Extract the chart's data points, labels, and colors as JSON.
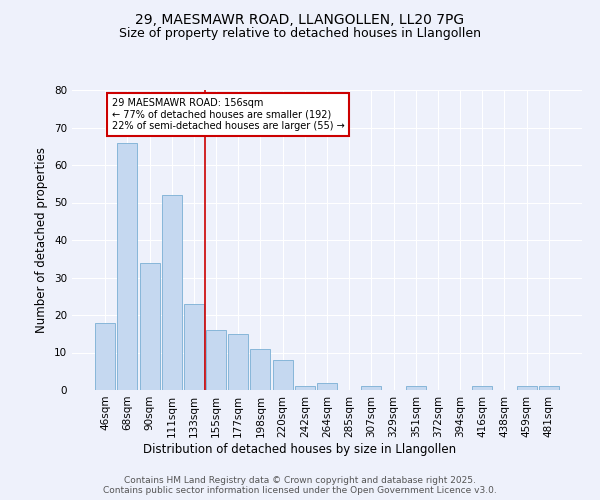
{
  "title1": "29, MAESMAWR ROAD, LLANGOLLEN, LL20 7PG",
  "title2": "Size of property relative to detached houses in Llangollen",
  "xlabel": "Distribution of detached houses by size in Llangollen",
  "ylabel": "Number of detached properties",
  "categories": [
    "46sqm",
    "68sqm",
    "90sqm",
    "111sqm",
    "133sqm",
    "155sqm",
    "177sqm",
    "198sqm",
    "220sqm",
    "242sqm",
    "264sqm",
    "285sqm",
    "307sqm",
    "329sqm",
    "351sqm",
    "372sqm",
    "394sqm",
    "416sqm",
    "438sqm",
    "459sqm",
    "481sqm"
  ],
  "values": [
    18,
    66,
    34,
    52,
    23,
    16,
    15,
    11,
    8,
    1,
    2,
    0,
    1,
    0,
    1,
    0,
    0,
    1,
    0,
    1,
    1
  ],
  "bar_color": "#c5d8f0",
  "bar_edge_color": "#7aafd4",
  "vline_x": 4.5,
  "vline_color": "#cc0000",
  "annotation_box_edge": "#cc0000",
  "annotation_text_line1": "29 MAESMAWR ROAD: 156sqm",
  "annotation_text_line2": "← 77% of detached houses are smaller (192)",
  "annotation_text_line3": "22% of semi-detached houses are larger (55) →",
  "ylim": [
    0,
    80
  ],
  "yticks": [
    0,
    10,
    20,
    30,
    40,
    50,
    60,
    70,
    80
  ],
  "footnote1": "Contains HM Land Registry data © Crown copyright and database right 2025.",
  "footnote2": "Contains public sector information licensed under the Open Government Licence v3.0.",
  "bg_color": "#eef1fb",
  "title_fontsize": 10,
  "subtitle_fontsize": 9,
  "axis_label_fontsize": 8.5,
  "tick_fontsize": 7.5,
  "footnote_fontsize": 6.5
}
